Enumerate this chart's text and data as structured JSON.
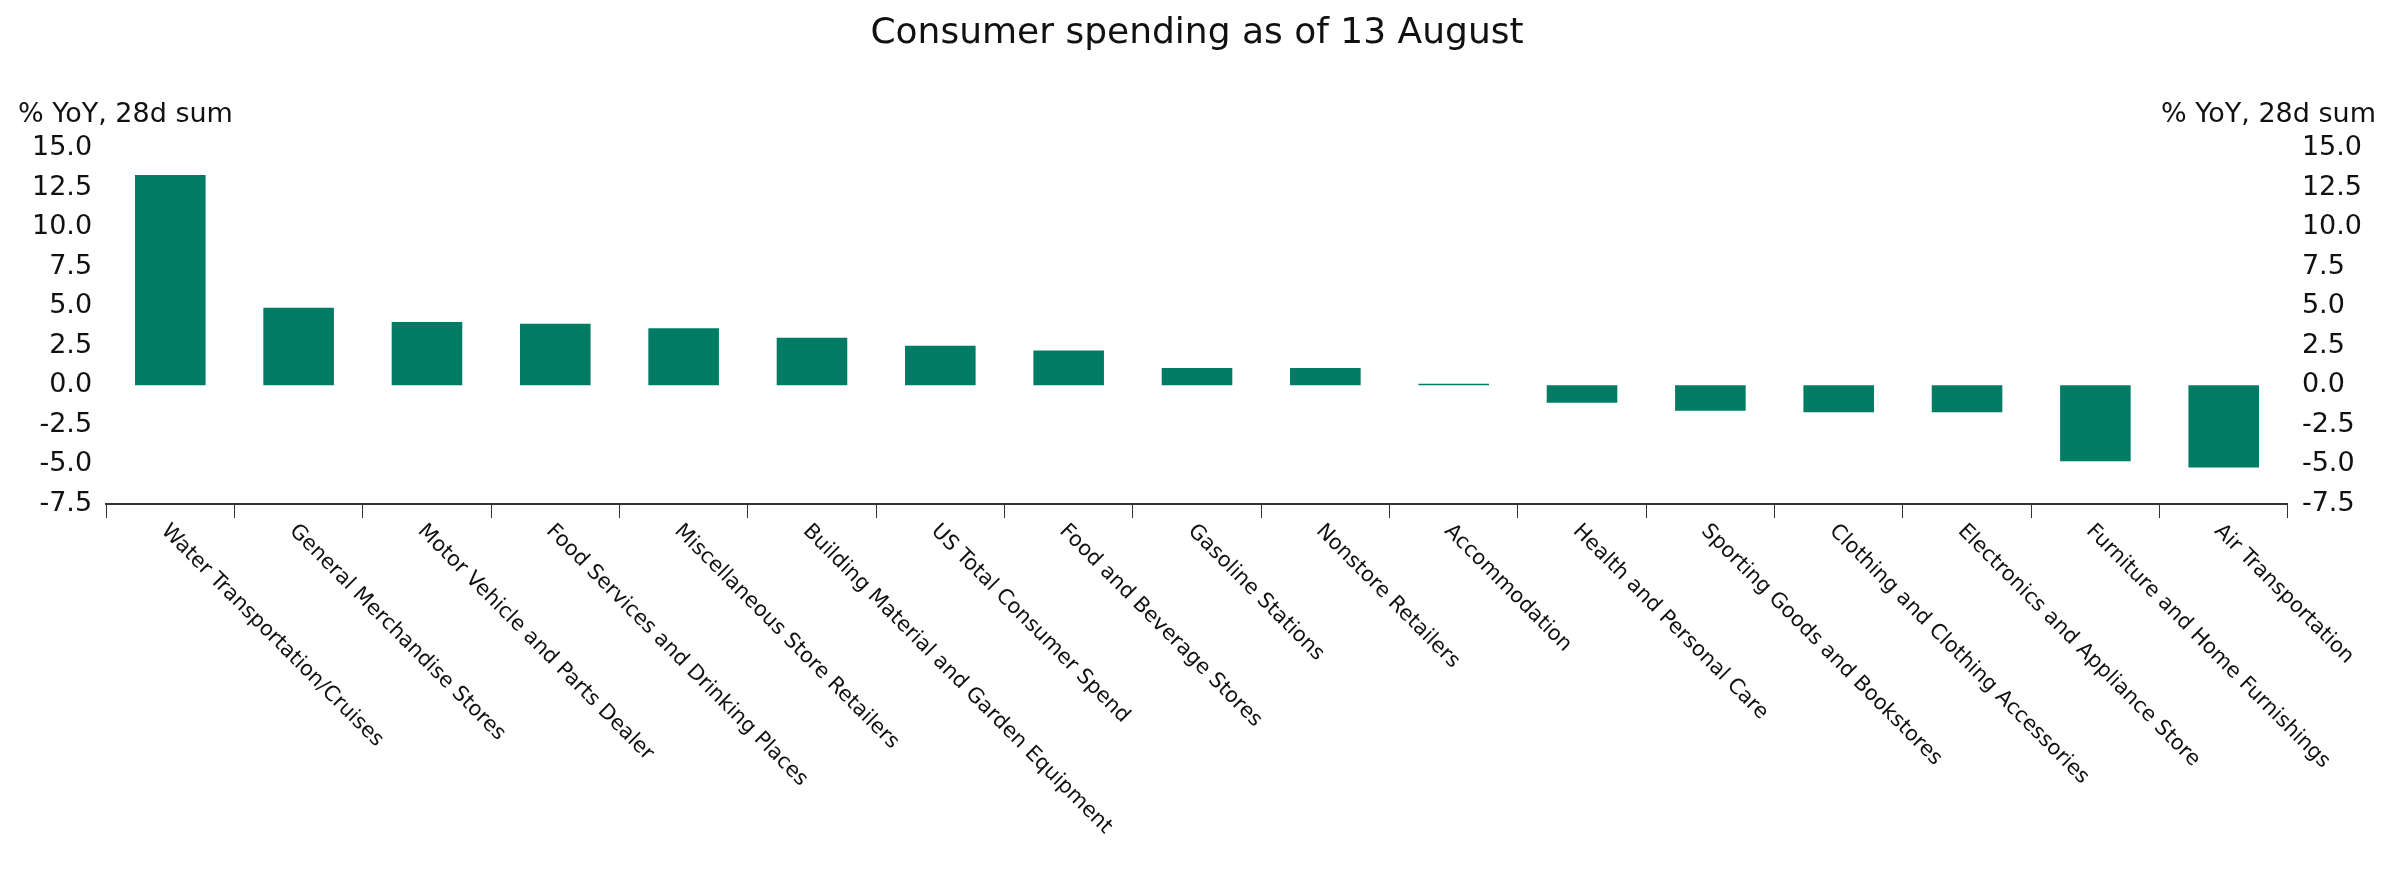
{
  "chart_data": {
    "type": "bar",
    "title": "Consumer spending as of 13 August",
    "ylabel": "% YoY, 28d sum",
    "y2label": "% YoY, 28d sum",
    "categories": [
      "Water Transportation/Cruises",
      "General Merchandise Stores",
      "Motor Vehicle and Parts Dealer",
      "Food Services and Drinking Places",
      "Miscellaneous Store Retailers",
      "Building Material and Garden Equipment",
      "US Total Consumer Spend",
      "Food and Beverage Stores",
      "Gasoline Stations",
      "Nonstore Retailers",
      "Accommodation",
      "Health and Personal Care",
      "Sporting Goods and Bookstores",
      "Clothing and Clothing Accessories",
      "Electronics and Appliance Store",
      "Furniture and Home Furnishings",
      "Air Transportation"
    ],
    "series": [
      {
        "color": "#007c65",
        "values": [
          13.3,
          4.9,
          4.0,
          3.9,
          3.6,
          3.0,
          2.5,
          2.2,
          1.1,
          1.1,
          0.1,
          -1.1,
          -1.6,
          -1.7,
          -1.7,
          -4.8,
          -5.2
        ]
      }
    ],
    "ylim": [
      -7.5,
      15
    ],
    "yticks": [
      {
        "value": -7.5,
        "label": "-7.5"
      },
      {
        "value": -5,
        "label": "-5.0"
      },
      {
        "value": -2.5,
        "label": "-2.5"
      },
      {
        "value": 0,
        "label": "0.0"
      },
      {
        "value": 2.5,
        "label": "2.5"
      },
      {
        "value": 5,
        "label": "5.0"
      },
      {
        "value": 7.5,
        "label": "7.5"
      },
      {
        "value": 10,
        "label": "10.0"
      },
      {
        "value": 12.5,
        "label": "12.5"
      },
      {
        "value": 15,
        "label": "15.0"
      }
    ],
    "y2lim": [
      -7.5,
      15
    ],
    "y2ticks": [
      {
        "value": -7.5,
        "label": "-7.5"
      },
      {
        "value": -5,
        "label": "-5.0"
      },
      {
        "value": -2.5,
        "label": "-2.5"
      },
      {
        "value": 0,
        "label": "0.0"
      },
      {
        "value": 2.5,
        "label": "2.5"
      },
      {
        "value": 5,
        "label": "5.0"
      },
      {
        "value": 7.5,
        "label": "7.5"
      },
      {
        "value": 10,
        "label": "10.0"
      },
      {
        "value": 12.5,
        "label": "12.5"
      },
      {
        "value": 15,
        "label": "15.0"
      }
    ],
    "grid": false,
    "legend": false
  }
}
